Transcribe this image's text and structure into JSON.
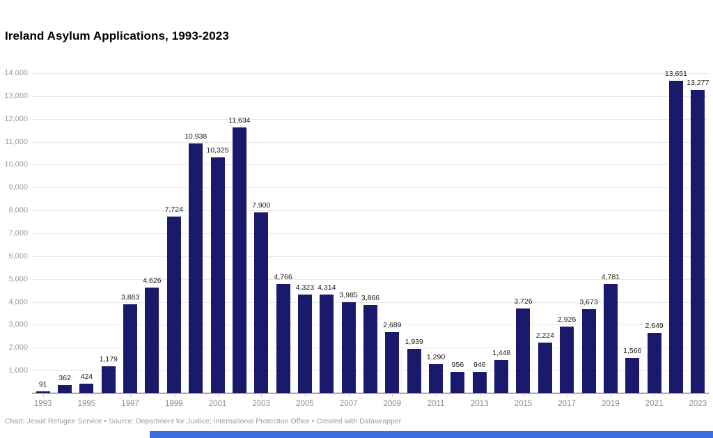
{
  "page": {
    "title": "Ireland Asylum Applications, 1993-2023",
    "footer": "Chart: Jesuit Refugee Service • Source: Department for Justice; International Protection Office • Created with Datawrapper"
  },
  "colors": {
    "bar": "#1a1a6c",
    "grid": "#e8e8e8",
    "axis_text": "#9a9a9a",
    "value_text": "#1a1a1a",
    "baseline": "#2b2b2b",
    "bottom_bar": "#3d6ddf"
  },
  "chart_data": {
    "type": "bar",
    "title": "Ireland Asylum Applications, 1993-2023",
    "categories": [
      1993,
      1994,
      1995,
      1996,
      1997,
      1998,
      1999,
      2000,
      2001,
      2002,
      2003,
      2004,
      2005,
      2006,
      2007,
      2008,
      2009,
      2010,
      2011,
      2012,
      2013,
      2014,
      2015,
      2016,
      2017,
      2018,
      2019,
      2020,
      2021,
      2022,
      2023
    ],
    "values": [
      91,
      362,
      424,
      1179,
      3883,
      4626,
      7724,
      10938,
      10325,
      11634,
      7900,
      4766,
      4323,
      4314,
      3985,
      3866,
      2689,
      1939,
      1290,
      956,
      946,
      1448,
      3726,
      2224,
      2926,
      3673,
      4781,
      1566,
      2649,
      13651,
      13277
    ],
    "xlabel": "",
    "ylabel": "",
    "ylim": [
      0,
      14000
    ],
    "ytick_step": 1000,
    "grid": true,
    "legend": "none",
    "x_label_every": 2
  }
}
